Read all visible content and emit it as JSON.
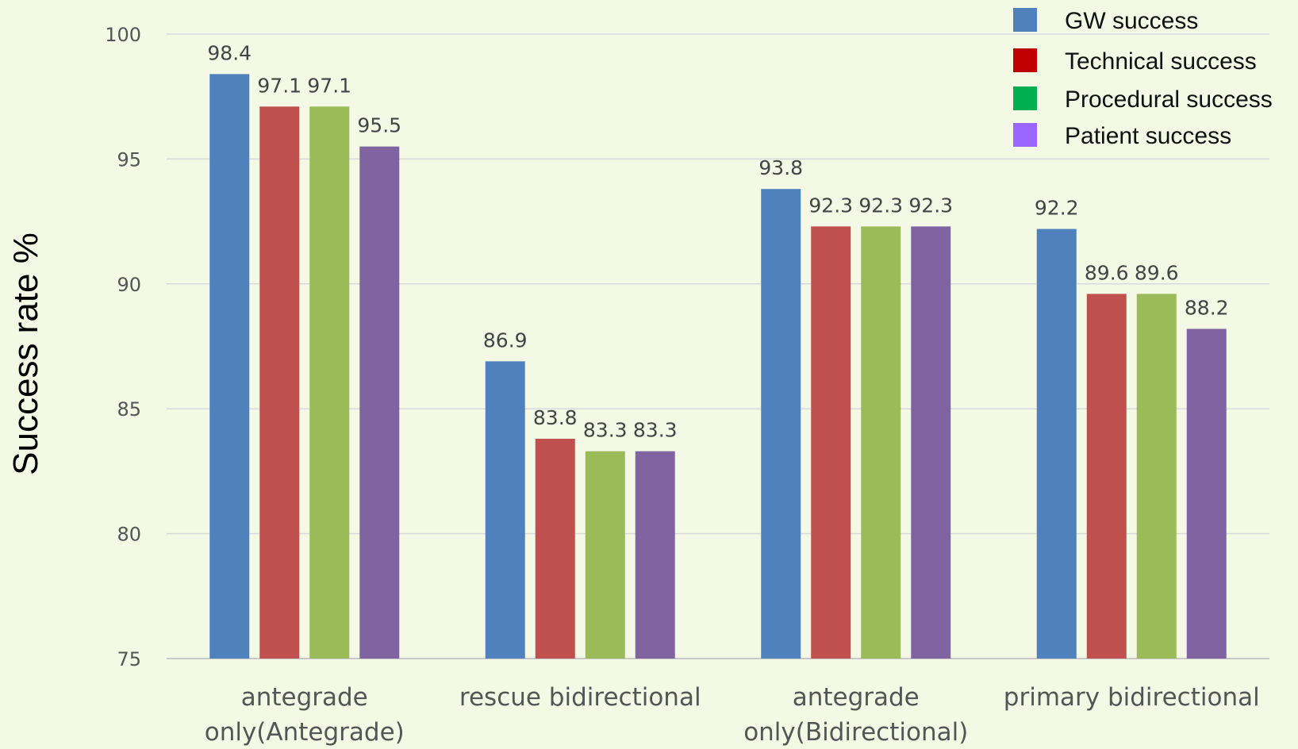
{
  "chart_data": {
    "type": "bar",
    "ylabel": "Success rate   %",
    "ylim": [
      75,
      100
    ],
    "yticks": [
      75,
      80,
      85,
      90,
      95,
      100
    ],
    "grid": true,
    "legend_position": "top-right",
    "categories": [
      [
        "antegrade",
        "only(Antegrade)"
      ],
      [
        "rescue bidirectional"
      ],
      [
        "antegrade",
        "only(Bidirectional)"
      ],
      [
        "primary bidirectional"
      ]
    ],
    "series": [
      {
        "name": "GW success",
        "color": "#4f81bd",
        "legend_color": "#4f81bd",
        "values": [
          98.4,
          86.9,
          93.8,
          92.2
        ]
      },
      {
        "name": "Technical success",
        "color": "#c0504d",
        "legend_color": "#c00000",
        "values": [
          97.1,
          83.8,
          92.3,
          89.6
        ]
      },
      {
        "name": "Procedural success",
        "color": "#9bbb59",
        "legend_color": "#00b050",
        "values": [
          97.1,
          83.3,
          92.3,
          89.6
        ]
      },
      {
        "name": "Patient success",
        "color": "#8064a2",
        "legend_color": "#9966ff",
        "values": [
          95.5,
          83.3,
          92.3,
          88.2
        ]
      }
    ]
  }
}
